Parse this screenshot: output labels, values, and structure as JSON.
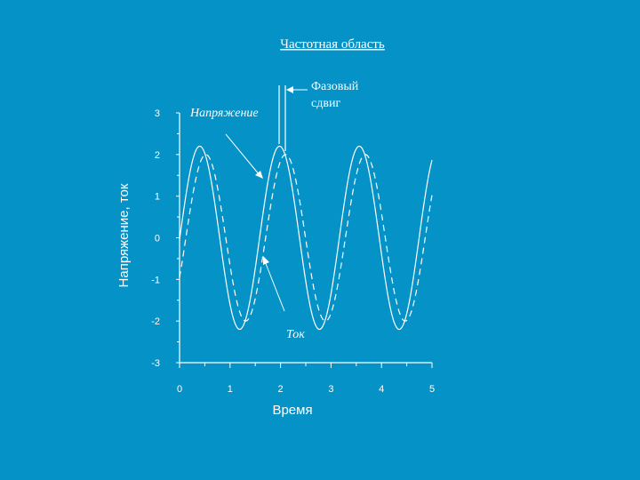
{
  "colors": {
    "background": "#0592c7",
    "foreground": "#ffffff"
  },
  "chart_data": {
    "type": "line",
    "title": "Частотная область",
    "xlabel": "Время",
    "ylabel": "Напряжение, ток",
    "xlim": [
      0,
      5
    ],
    "ylim": [
      -3,
      3
    ],
    "x_ticks": [
      "0",
      "1",
      "2",
      "3",
      "4",
      "5"
    ],
    "y_ticks": [
      "3",
      "2",
      "1",
      "0",
      "-1",
      "-2",
      "-3"
    ],
    "grid": false,
    "series": [
      {
        "name": "Напряжение",
        "style": "solid",
        "amplitude": 2.2,
        "period": 1.58,
        "peak_x": [
          0.4,
          1.98,
          3.56
        ],
        "x_range": [
          0,
          5
        ]
      },
      {
        "name": "Ток",
        "style": "dashed",
        "amplitude": 2.0,
        "period": 1.58,
        "peak_x": [
          0.52,
          2.1,
          3.68
        ],
        "x_range": [
          0,
          5
        ]
      }
    ],
    "annotations": [
      {
        "text": "Фазовый сдвиг",
        "x_between": [
          1.98,
          2.1
        ]
      }
    ]
  }
}
